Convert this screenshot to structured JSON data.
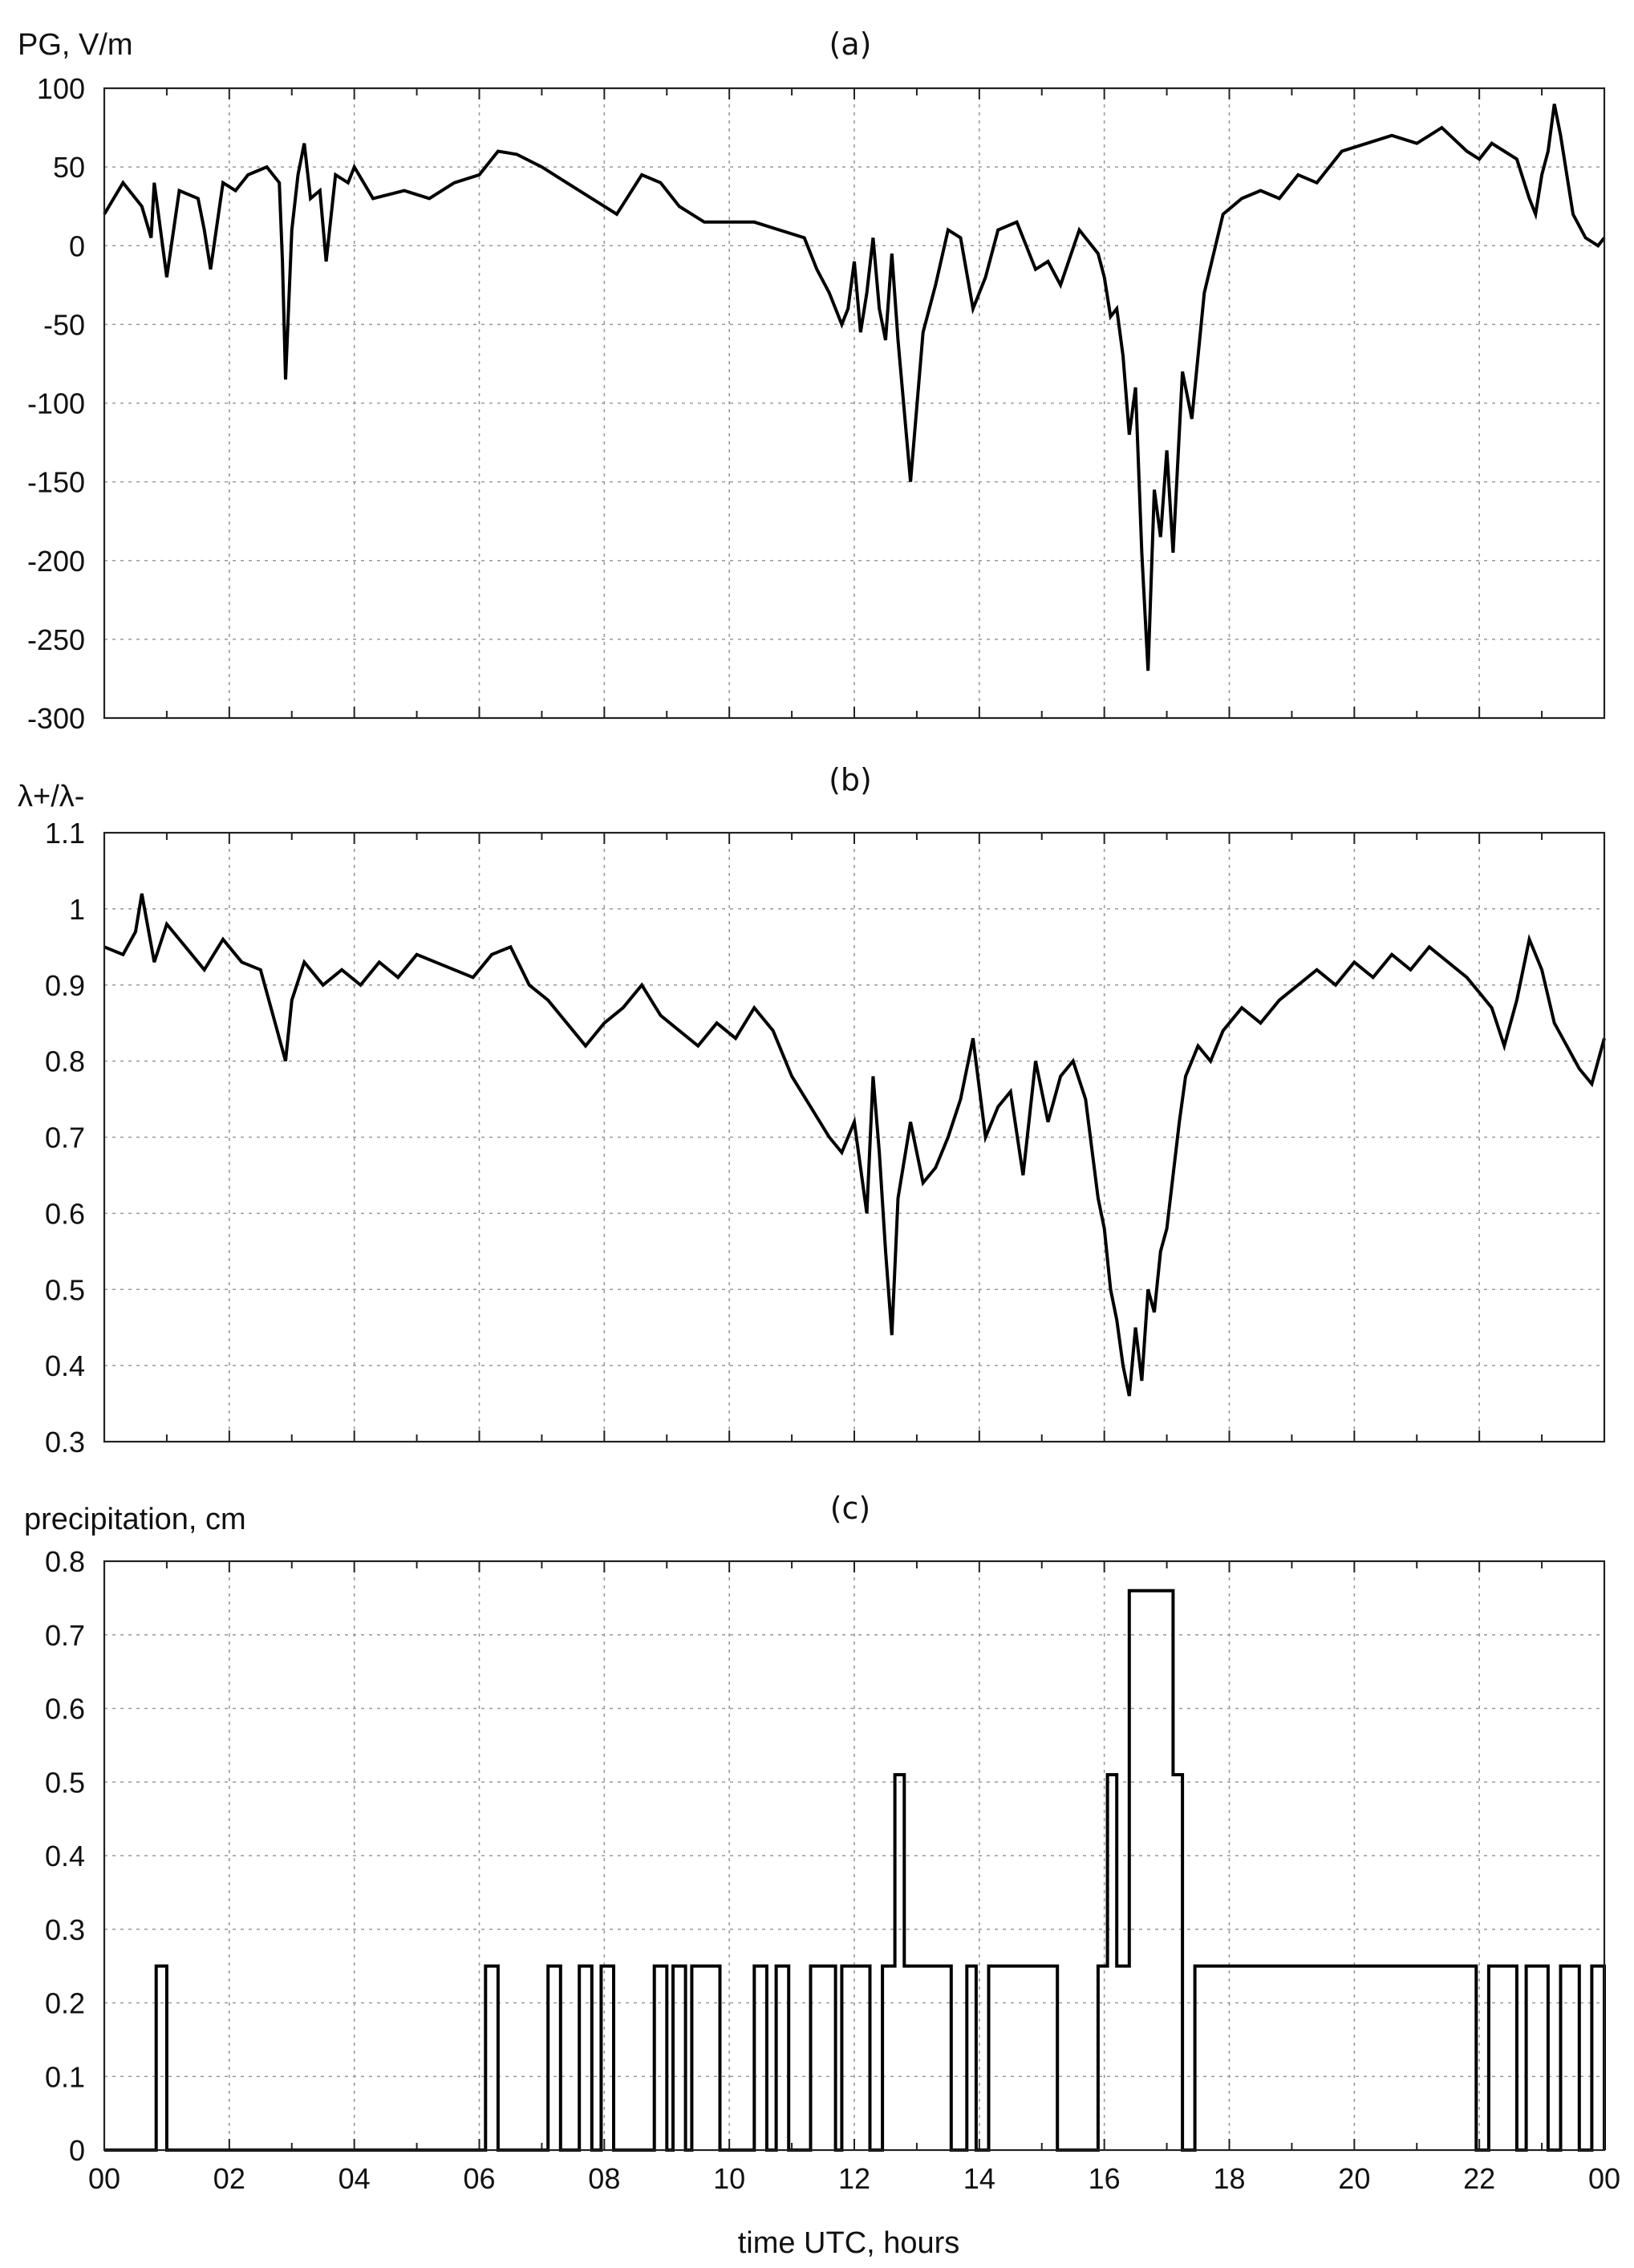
{
  "chart_data": [
    {
      "type": "line",
      "title": "(a)",
      "ylabel": "PG, V/m",
      "xlim": [
        0,
        24
      ],
      "ylim": [
        -300,
        100
      ],
      "yticks": [
        "100",
        "50",
        "0",
        "-50",
        "-100",
        "-150",
        "-200",
        "-250",
        "-300"
      ],
      "grid": true,
      "series": [
        {
          "x": [
            0,
            0.3,
            0.6,
            0.75,
            0.8,
            0.9,
            1.0,
            1.2,
            1.5,
            1.6,
            1.7,
            1.9,
            2.1,
            2.3,
            2.6,
            2.8,
            2.85,
            2.9,
            3.0,
            3.1,
            3.2,
            3.3,
            3.45,
            3.55,
            3.7,
            3.9,
            4.0,
            4.3,
            4.8,
            5.2,
            5.6,
            6.0,
            6.2,
            6.3,
            6.6,
            7.0,
            7.4,
            7.8,
            8.2,
            8.6,
            8.9,
            9.2,
            9.6,
            10.0,
            10.4,
            10.8,
            11.2,
            11.4,
            11.6,
            11.8,
            11.9,
            12.0,
            12.1,
            12.2,
            12.3,
            12.4,
            12.5,
            12.6,
            12.7,
            12.9,
            13.1,
            13.3,
            13.5,
            13.7,
            13.9,
            14.1,
            14.3,
            14.6,
            14.9,
            15.1,
            15.3,
            15.6,
            15.9,
            16.0,
            16.1,
            16.2,
            16.3,
            16.4,
            16.5,
            16.6,
            16.7,
            16.8,
            16.9,
            17.0,
            17.1,
            17.25,
            17.4,
            17.6,
            17.9,
            18.2,
            18.5,
            18.8,
            19.1,
            19.4,
            19.8,
            20.2,
            20.6,
            21.0,
            21.4,
            21.8,
            22.0,
            22.2,
            22.4,
            22.6,
            22.8,
            22.9,
            23.0,
            23.1,
            23.2,
            23.3,
            23.5,
            23.7,
            23.9,
            24.0
          ],
          "y": [
            20,
            40,
            25,
            5,
            40,
            10,
            -20,
            35,
            30,
            10,
            -15,
            40,
            35,
            45,
            50,
            40,
            -10,
            -85,
            10,
            45,
            65,
            30,
            35,
            -10,
            45,
            40,
            50,
            30,
            35,
            30,
            40,
            45,
            55,
            60,
            58,
            50,
            40,
            30,
            20,
            45,
            40,
            25,
            15,
            15,
            15,
            10,
            5,
            -15,
            -30,
            -50,
            -40,
            -10,
            -55,
            -30,
            5,
            -40,
            -60,
            -5,
            -60,
            -150,
            -55,
            -25,
            10,
            5,
            -40,
            -20,
            10,
            15,
            -15,
            -10,
            -25,
            10,
            -5,
            -20,
            -45,
            -40,
            -70,
            -120,
            -90,
            -195,
            -270,
            -155,
            -185,
            -130,
            -195,
            -80,
            -110,
            -30,
            20,
            30,
            35,
            30,
            45,
            40,
            60,
            65,
            70,
            65,
            75,
            60,
            55,
            65,
            60,
            55,
            30,
            20,
            45,
            60,
            90,
            70,
            20,
            5,
            0,
            5
          ]
        }
      ]
    },
    {
      "type": "line",
      "title": "(b)",
      "ylabel": "λ+/λ-",
      "xlim": [
        0,
        24
      ],
      "ylim": [
        0.3,
        1.1
      ],
      "yticks": [
        "1.1",
        "1",
        "0.9",
        "0.8",
        "0.7",
        "0.6",
        "0.5",
        "0.4",
        "0.3"
      ],
      "grid": true,
      "series": [
        {
          "x": [
            0,
            0.3,
            0.5,
            0.6,
            0.8,
            1.0,
            1.3,
            1.6,
            1.9,
            2.2,
            2.5,
            2.7,
            2.9,
            3.0,
            3.2,
            3.5,
            3.8,
            4.1,
            4.4,
            4.7,
            5.0,
            5.3,
            5.6,
            5.9,
            6.2,
            6.5,
            6.8,
            7.1,
            7.4,
            7.7,
            8.0,
            8.3,
            8.6,
            8.9,
            9.2,
            9.5,
            9.8,
            10.1,
            10.4,
            10.7,
            11.0,
            11.3,
            11.6,
            11.8,
            12.0,
            12.1,
            12.2,
            12.3,
            12.4,
            12.5,
            12.6,
            12.7,
            12.9,
            13.1,
            13.3,
            13.5,
            13.7,
            13.9,
            14.1,
            14.3,
            14.5,
            14.7,
            14.9,
            15.1,
            15.3,
            15.5,
            15.7,
            15.9,
            16.0,
            16.1,
            16.2,
            16.3,
            16.4,
            16.5,
            16.6,
            16.7,
            16.8,
            16.9,
            17.0,
            17.1,
            17.2,
            17.3,
            17.5,
            17.7,
            17.9,
            18.2,
            18.5,
            18.8,
            19.1,
            19.4,
            19.7,
            20.0,
            20.3,
            20.6,
            20.9,
            21.2,
            21.5,
            21.8,
            22.0,
            22.2,
            22.4,
            22.6,
            22.8,
            23.0,
            23.2,
            23.4,
            23.6,
            23.8,
            24.0
          ],
          "y": [
            0.95,
            0.94,
            0.97,
            1.02,
            0.93,
            0.98,
            0.95,
            0.92,
            0.96,
            0.93,
            0.92,
            0.86,
            0.8,
            0.88,
            0.93,
            0.9,
            0.92,
            0.9,
            0.93,
            0.91,
            0.94,
            0.93,
            0.92,
            0.91,
            0.94,
            0.95,
            0.9,
            0.88,
            0.85,
            0.82,
            0.85,
            0.87,
            0.9,
            0.86,
            0.84,
            0.82,
            0.85,
            0.83,
            0.87,
            0.84,
            0.78,
            0.74,
            0.7,
            0.68,
            0.72,
            0.66,
            0.6,
            0.78,
            0.68,
            0.55,
            0.44,
            0.62,
            0.72,
            0.64,
            0.66,
            0.7,
            0.75,
            0.83,
            0.7,
            0.74,
            0.76,
            0.65,
            0.8,
            0.72,
            0.78,
            0.8,
            0.75,
            0.62,
            0.58,
            0.5,
            0.46,
            0.4,
            0.36,
            0.45,
            0.38,
            0.5,
            0.47,
            0.55,
            0.58,
            0.65,
            0.72,
            0.78,
            0.82,
            0.8,
            0.84,
            0.87,
            0.85,
            0.88,
            0.9,
            0.92,
            0.9,
            0.93,
            0.91,
            0.94,
            0.92,
            0.95,
            0.93,
            0.91,
            0.89,
            0.87,
            0.82,
            0.88,
            0.96,
            0.92,
            0.85,
            0.82,
            0.79,
            0.77,
            0.83
          ]
        }
      ]
    },
    {
      "type": "line",
      "title": "(c)",
      "ylabel": "precipitation, cm",
      "xlabel": "time UTC, hours",
      "xlim": [
        0,
        24
      ],
      "ylim": [
        0,
        0.8
      ],
      "yticks": [
        "0.8",
        "0.7",
        "0.6",
        "0.5",
        "0.4",
        "0.3",
        "0.2",
        "0.1",
        "0"
      ],
      "xticks": [
        "00",
        "02",
        "04",
        "06",
        "08",
        "10",
        "12",
        "14",
        "16",
        "18",
        "20",
        "22",
        "00"
      ],
      "grid": true,
      "series": [
        {
          "step": true,
          "x": [
            0,
            0.83,
            1.0,
            6.1,
            6.3,
            7.1,
            7.3,
            7.6,
            7.8,
            7.95,
            8.15,
            8.8,
            9.0,
            9.1,
            9.3,
            9.4,
            9.85,
            10.4,
            10.6,
            10.75,
            10.95,
            11.3,
            11.7,
            11.8,
            12.25,
            12.45,
            12.65,
            12.8,
            13.4,
            13.55,
            13.8,
            13.95,
            14.15,
            14.8,
            15.25,
            15.9,
            16.05,
            16.2,
            16.4,
            17.1,
            17.25,
            17.45,
            21.95,
            22.15,
            22.6,
            22.75,
            23.1,
            23.3,
            23.6,
            23.8,
            24.0
          ],
          "y": [
            0,
            0.25,
            0,
            0.25,
            0,
            0.25,
            0,
            0.25,
            0,
            0.25,
            0,
            0.25,
            0,
            0.25,
            0,
            0.25,
            0,
            0.25,
            0,
            0.25,
            0,
            0.25,
            0,
            0.25,
            0,
            0.25,
            0.51,
            0.25,
            0.25,
            0,
            0.25,
            0,
            0.25,
            0.25,
            0,
            0.25,
            0.51,
            0.25,
            0.76,
            0.51,
            0,
            0.25,
            0,
            0.25,
            0,
            0.25,
            0,
            0.25,
            0,
            0.25,
            0
          ]
        }
      ]
    }
  ]
}
